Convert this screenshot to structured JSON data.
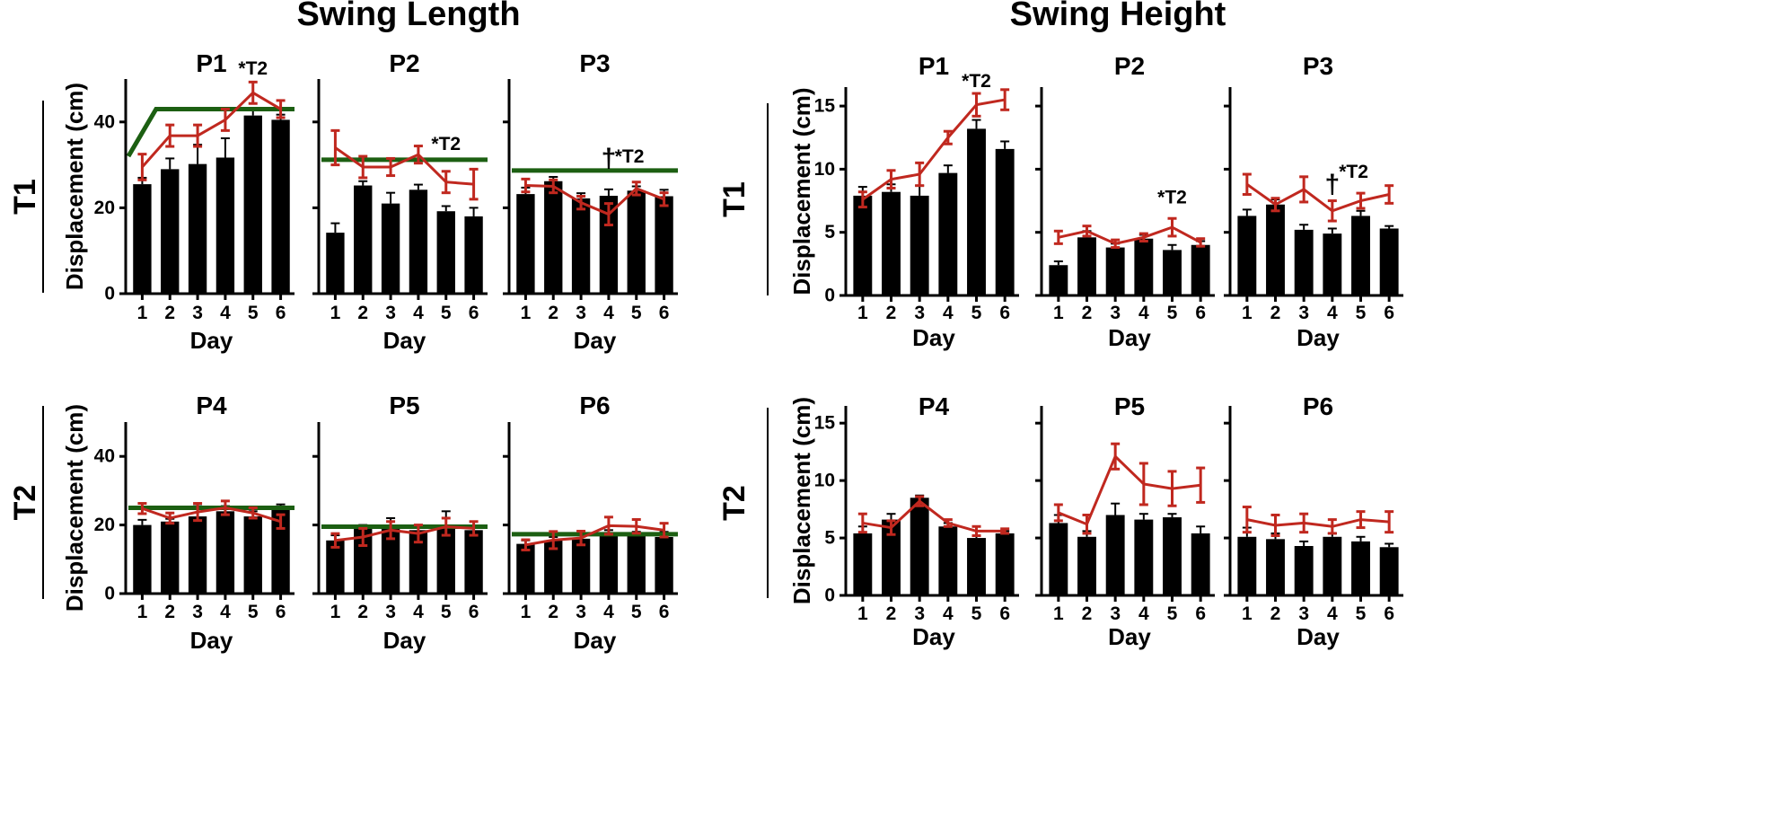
{
  "chart_data": {
    "type": "bar",
    "sections": [
      {
        "title": "Swing Length",
        "ylabel": "Displacement (cm)",
        "xlabel": "Day",
        "ylim": [
          0,
          50
        ],
        "yticks": [
          0,
          20,
          40
        ],
        "rows": [
          {
            "label": "T1",
            "panels": [
              {
                "title": "P1",
                "categories": [
                  "1",
                  "2",
                  "3",
                  "4",
                  "5",
                  "6"
                ],
                "bar_values": [
                  25.5,
                  29,
                  30.2,
                  31.7,
                  41.5,
                  40.5
                ],
                "bar_err": [
                  1.5,
                  2.5,
                  4.5,
                  4.5,
                  1.5,
                  1.2
                ],
                "line_values": [
                  29.5,
                  36.8,
                  36.8,
                  40.5,
                  46.8,
                  43
                ],
                "line_err": [
                  3,
                  2.5,
                  2.5,
                  2.5,
                  2.5,
                  2
                ],
                "reference_line": {
                  "x": [
                    "0.5",
                    "1.5",
                    "6.5"
                  ],
                  "y": [
                    32,
                    43,
                    43
                  ]
                },
                "annotations": [
                  {
                    "text": "*T2",
                    "x": 5,
                    "y": 51
                  }
                ]
              },
              {
                "title": "P2",
                "categories": [
                  "1",
                  "2",
                  "3",
                  "4",
                  "5",
                  "6"
                ],
                "bar_values": [
                  14.2,
                  25.2,
                  21,
                  24.2,
                  19.2,
                  18
                ],
                "bar_err": [
                  2.2,
                  1,
                  2.5,
                  1.2,
                  1.2,
                  2
                ],
                "line_values": [
                  34,
                  29.5,
                  29.5,
                  32.4,
                  26,
                  25.5
                ],
                "line_err": [
                  4,
                  2.5,
                  2,
                  2,
                  2.5,
                  3.5
                ],
                "reference_line": {
                  "x": [
                    "0.5",
                    "6.5"
                  ],
                  "y": [
                    31.2,
                    31.2
                  ]
                },
                "annotations": [
                  {
                    "text": "*T2",
                    "x": 5,
                    "y": 33.5
                  }
                ]
              },
              {
                "title": "P3",
                "categories": [
                  "1",
                  "2",
                  "3",
                  "4",
                  "5",
                  "6"
                ],
                "bar_values": [
                  23.2,
                  26.2,
                  22.2,
                  22.8,
                  24,
                  22.7
                ],
                "bar_err": [
                  1.5,
                  1,
                  1.2,
                  1.5,
                  1,
                  1.5
                ],
                "line_values": [
                  25.2,
                  25,
                  21.2,
                  18.5,
                  24.5,
                  22
                ],
                "line_err": [
                  1.5,
                  1.5,
                  1.5,
                  2.5,
                  1.5,
                  1.5
                ],
                "reference_line": {
                  "x": [
                    "0.5",
                    "6.5"
                  ],
                  "y": [
                    28.7,
                    28.7
                  ]
                },
                "annotations": [
                  {
                    "text": "†",
                    "x": 4,
                    "y": 29.5
                  },
                  {
                    "text": "*T2",
                    "x": 4.75,
                    "y": 30.5
                  }
                ]
              }
            ]
          },
          {
            "label": "T2",
            "panels": [
              {
                "title": "P4",
                "categories": [
                  "1",
                  "2",
                  "3",
                  "4",
                  "5",
                  "6"
                ],
                "bar_values": [
                  20,
                  21,
                  22.5,
                  24,
                  22.5,
                  24.5
                ],
                "bar_err": [
                  1.5,
                  0.8,
                  3,
                  1.5,
                  1.5,
                  1.5
                ],
                "line_values": [
                  24.8,
                  22,
                  23.8,
                  25,
                  23.5,
                  21
                ],
                "line_err": [
                  1.5,
                  1.5,
                  2.5,
                  2,
                  1.5,
                  2
                ],
                "reference_line": {
                  "x": [
                    "0.5",
                    "6.5"
                  ],
                  "y": [
                    25,
                    25
                  ]
                },
                "annotations": []
              },
              {
                "title": "P5",
                "categories": [
                  "1",
                  "2",
                  "3",
                  "4",
                  "5",
                  "6"
                ],
                "bar_values": [
                  15.5,
                  19,
                  20,
                  18.5,
                  19.5,
                  18.5
                ],
                "bar_err": [
                  1.5,
                  1,
                  2,
                  1.5,
                  4.5,
                  1
                ],
                "line_values": [
                  15.5,
                  16.5,
                  18.5,
                  17.5,
                  19.5,
                  19
                ],
                "line_err": [
                  2,
                  2.5,
                  2.5,
                  2.5,
                  2.5,
                  2
                ],
                "reference_line": {
                  "x": [
                    "0.5",
                    "6.5"
                  ],
                  "y": [
                    19.5,
                    19.5
                  ]
                },
                "annotations": []
              },
              {
                "title": "P6",
                "categories": [
                  "1",
                  "2",
                  "3",
                  "4",
                  "5",
                  "6"
                ],
                "bar_values": [
                  14.5,
                  15.5,
                  16,
                  17.5,
                  17,
                  16.5
                ],
                "bar_err": [
                  1,
                  1,
                  1,
                  1,
                  1,
                  1.5
                ],
                "line_values": [
                  14.2,
                  15.6,
                  16.2,
                  19.8,
                  19.6,
                  18.5
                ],
                "line_err": [
                  1.5,
                  2.5,
                  2,
                  2.5,
                  2,
                  2
                ],
                "reference_line": {
                  "x": [
                    "0.5",
                    "6.5"
                  ],
                  "y": [
                    17.3,
                    17.3
                  ]
                },
                "annotations": []
              }
            ]
          }
        ]
      },
      {
        "title": "Swing Height",
        "ylabel": "Displacement (cm)",
        "xlabel": "Day",
        "ylim": [
          0,
          16.5
        ],
        "yticks": [
          0,
          5,
          10,
          15
        ],
        "rows": [
          {
            "label": "T1",
            "panels": [
              {
                "title": "P1",
                "categories": [
                  "1",
                  "2",
                  "3",
                  "4",
                  "5",
                  "6"
                ],
                "bar_values": [
                  7.9,
                  8.2,
                  7.9,
                  9.7,
                  13.2,
                  11.6
                ],
                "bar_err": [
                  0.7,
                  0.6,
                  0.8,
                  0.6,
                  0.7,
                  0.6
                ],
                "line_values": [
                  7.6,
                  9.2,
                  9.6,
                  12.5,
                  15.1,
                  15.5
                ],
                "line_err": [
                  0.6,
                  0.7,
                  0.9,
                  0.5,
                  0.9,
                  0.8
                ],
                "annotations": [
                  {
                    "text": "*T2",
                    "x": 5,
                    "y": 16.5
                  }
                ]
              },
              {
                "title": "P2",
                "categories": [
                  "1",
                  "2",
                  "3",
                  "4",
                  "5",
                  "6"
                ],
                "bar_values": [
                  2.4,
                  4.6,
                  3.8,
                  4.5,
                  3.6,
                  4
                ],
                "bar_err": [
                  0.3,
                  0.5,
                  0.3,
                  0.3,
                  0.4,
                  0.3
                ],
                "line_values": [
                  4.6,
                  5.1,
                  4.1,
                  4.6,
                  5.4,
                  4.2
                ],
                "line_err": [
                  0.5,
                  0.4,
                  0.3,
                  0.3,
                  0.7,
                  0.3
                ],
                "annotations": [
                  {
                    "text": "*T2",
                    "x": 5,
                    "y": 7.3
                  }
                ]
              },
              {
                "title": "P3",
                "categories": [
                  "1",
                  "2",
                  "3",
                  "4",
                  "5",
                  "6"
                ],
                "bar_values": [
                  6.3,
                  7.2,
                  5.2,
                  4.9,
                  6.3,
                  5.3
                ],
                "bar_err": [
                  0.5,
                  0.4,
                  0.4,
                  0.4,
                  0.4,
                  0.2
                ],
                "line_values": [
                  8.8,
                  7.2,
                  8.4,
                  6.7,
                  7.5,
                  8
                ],
                "line_err": [
                  0.8,
                  0.5,
                  1,
                  0.8,
                  0.6,
                  0.7
                ],
                "annotations": [
                  {
                    "text": "†",
                    "x": 4,
                    "y": 8.1
                  },
                  {
                    "text": "*T2",
                    "x": 4.75,
                    "y": 9.3
                  }
                ]
              }
            ]
          },
          {
            "label": "T2",
            "panels": [
              {
                "title": "P4",
                "categories": [
                  "1",
                  "2",
                  "3",
                  "4",
                  "5",
                  "6"
                ],
                "bar_values": [
                  5.4,
                  6.6,
                  8.5,
                  6,
                  5,
                  5.4
                ],
                "bar_err": [
                  0.6,
                  0.5,
                  0.2,
                  0.3,
                  0.2,
                  0.2
                ],
                "line_values": [
                  6.3,
                  5.9,
                  8.2,
                  6.3,
                  5.6,
                  5.6
                ],
                "line_err": [
                  0.8,
                  0.6,
                  0.4,
                  0.3,
                  0.4,
                  0.2
                ],
                "annotations": []
              },
              {
                "title": "P5",
                "categories": [
                  "1",
                  "2",
                  "3",
                  "4",
                  "5",
                  "6"
                ],
                "bar_values": [
                  6.3,
                  5.1,
                  7,
                  6.6,
                  6.8,
                  5.4
                ],
                "bar_err": [
                  0.7,
                  0.5,
                  1,
                  0.5,
                  0.3,
                  0.6
                ],
                "line_values": [
                  7.2,
                  6.2,
                  12.1,
                  9.7,
                  9.3,
                  9.6
                ],
                "line_err": [
                  0.7,
                  0.8,
                  1.1,
                  1.8,
                  1.5,
                  1.5
                ],
                "annotations": []
              },
              {
                "title": "P6",
                "categories": [
                  "1",
                  "2",
                  "3",
                  "4",
                  "5",
                  "6"
                ],
                "bar_values": [
                  5.1,
                  4.9,
                  4.3,
                  5.1,
                  4.7,
                  4.2
                ],
                "bar_err": [
                  0.8,
                  0.5,
                  0.4,
                  0.3,
                  0.4,
                  0.3
                ],
                "line_values": [
                  6.6,
                  6.1,
                  6.3,
                  6,
                  6.6,
                  6.4
                ],
                "line_err": [
                  1.1,
                  0.9,
                  0.8,
                  0.6,
                  0.7,
                  0.9
                ],
                "annotations": []
              }
            ]
          }
        ]
      }
    ],
    "colors": {
      "bars": "#000000",
      "line": "#c0281f",
      "reference_line": "#1c5f12"
    }
  }
}
